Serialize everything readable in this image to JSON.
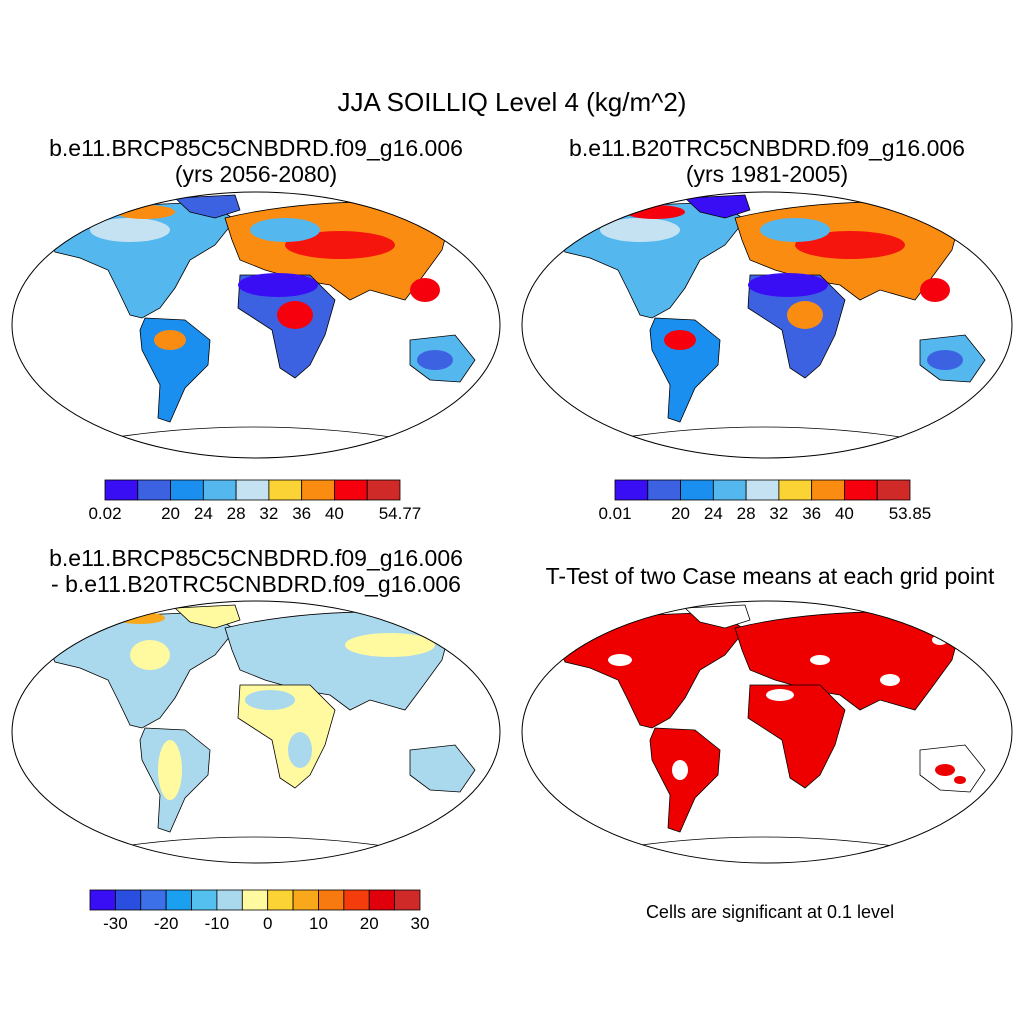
{
  "main_title": "JJA SOILLIQ Level 4 (kg/m^2)",
  "panels": [
    {
      "title_line1": "b.e11.BRCP85C5CNBDRD.f09_g16.006",
      "title_line2": "(yrs 2056-2080)",
      "colorbar": {
        "labels": [
          "0.02",
          "20",
          "24",
          "28",
          "32",
          "36",
          "40",
          "54.77"
        ],
        "colors": [
          "#3a0ef5",
          "#3c62e2",
          "#1b8ff0",
          "#54b7ee",
          "#c5e2f3",
          "#fcd335",
          "#fb8c12",
          "#f5000c",
          "#d02a28"
        ]
      }
    },
    {
      "title_line1": "b.e11.B20TRC5CNBDRD.f09_g16.006",
      "title_line2": "(yrs 1981-2005)",
      "colorbar": {
        "labels": [
          "0.01",
          "20",
          "24",
          "28",
          "32",
          "36",
          "40",
          "53.85"
        ],
        "colors": [
          "#3a0ef5",
          "#3c62e2",
          "#1b8ff0",
          "#54b7ee",
          "#c5e2f3",
          "#fcd335",
          "#fb8c12",
          "#f5000c",
          "#d02a28"
        ]
      }
    },
    {
      "title_line1": "b.e11.BRCP85C5CNBDRD.f09_g16.006",
      "title_line2": "- b.e11.B20TRC5CNBDRD.f09_g16.006",
      "colorbar": {
        "labels": [
          "-30",
          "-20",
          "-10",
          "0",
          "10",
          "20",
          "30"
        ],
        "colors": [
          "#3a0ef5",
          "#2a4fe0",
          "#3c70e8",
          "#1b9ff0",
          "#54c0f0",
          "#aad8ec",
          "#fffaa0",
          "#fcd335",
          "#f8a81a",
          "#f67a10",
          "#f53c0c",
          "#e0000c",
          "#d02a28"
        ]
      }
    },
    {
      "title_line1": "T-Test of two Case means at each grid point",
      "note": "Cells are significant at 0.1 level",
      "sig_color": "#ee0000"
    }
  ]
}
